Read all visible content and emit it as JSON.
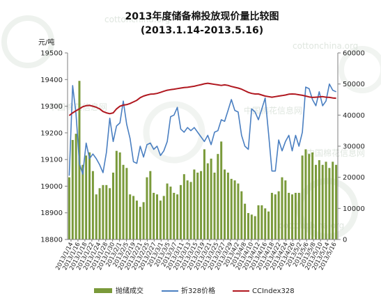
{
  "chart_data": {
    "type": "bar+line",
    "title": "2013年度储备棉投放现价量比较图",
    "subtitle": "(2013.1.14-2013.5.16)",
    "left_unit": "元/吨",
    "left_axis": {
      "min": 18800,
      "max": 19500,
      "ticks": [
        18800,
        18900,
        19000,
        19100,
        19200,
        19300,
        19400,
        19500
      ]
    },
    "right_axis": {
      "min": 0,
      "max": 60000,
      "ticks": [
        0,
        10000,
        20000,
        30000,
        40000,
        50000,
        60000
      ]
    },
    "x_tick_labels": [
      "2013/1/14",
      "2013/1/16",
      "2013/1/18",
      "2013/1/22",
      "2013/1/24",
      "2013/1/28",
      "2013/1/30",
      "2013/2/1",
      "2013/2/5",
      "2013/2/19",
      "2013/2/21",
      "2013/2/25",
      "2013/2/27",
      "2013/3/1",
      "2013/3/5",
      "2013/3/7",
      "2013/3/11",
      "2013/3/13",
      "2013/3/15",
      "2013/3/19",
      "2013/3/21",
      "2013/3/25",
      "2013/3/27",
      "2013/3/29",
      "2013/4/2",
      "2013/4/8",
      "2013/4/10",
      "2013/4/12",
      "2013/4/16",
      "2013/4/18",
      "2013/4/22",
      "2013/4/24",
      "2013/4/26",
      "2013/5/2",
      "2013/5/6",
      "2013/5/8",
      "2013/5/10",
      "2013/5/14",
      "2013/5/16"
    ],
    "series": [
      {
        "name": "抛储成交",
        "type": "bar",
        "axis": "right",
        "color": "#7a9a3a",
        "values": [
          20000,
          32000,
          34000,
          51000,
          24000,
          27000,
          28000,
          22000,
          14500,
          16500,
          17500,
          17500,
          16500,
          21500,
          28500,
          28000,
          24000,
          23000,
          14500,
          14000,
          12500,
          10500,
          12000,
          20000,
          22000,
          15000,
          14500,
          12500,
          14000,
          18000,
          17000,
          15000,
          14500,
          17500,
          21000,
          19000,
          18500,
          22500,
          21500,
          22000,
          29000,
          24500,
          26000,
          21500,
          27500,
          31500,
          22500,
          21500,
          19500,
          19000,
          18000,
          15500,
          11500,
          8500,
          8000,
          7500,
          11000,
          11000,
          10000,
          9000,
          15000,
          14500,
          15500,
          20000,
          19000,
          15000,
          14500,
          15000,
          15000,
          27000,
          29000,
          27500,
          28000,
          24000,
          25500,
          24000,
          25000,
          23000,
          25000,
          24000
        ],
        "values_note": "approximate reading per trading day"
      },
      {
        "name": "折328价格",
        "type": "line",
        "axis": "right",
        "color": "#4a7fc1",
        "values": [
          20500,
          49500,
          40500,
          24500,
          21000,
          31000,
          26000,
          27500,
          26000,
          24000,
          21500,
          28000,
          39000,
          31500,
          36500,
          37500,
          44500,
          37000,
          32500,
          25000,
          24500,
          30000,
          26500,
          30500,
          31000,
          29000,
          30000,
          27000,
          28500,
          31500,
          39500,
          40000,
          42500,
          35500,
          34500,
          36000,
          35000,
          36000,
          34500,
          33000,
          31500,
          33500,
          30500,
          34500,
          35000,
          38500,
          38000,
          41500,
          45000,
          41500,
          41000,
          33500,
          30000,
          29000,
          42000,
          41000,
          38500,
          42000,
          45500,
          34000,
          22000,
          22000,
          32000,
          28500,
          31500,
          33500,
          28500,
          33500,
          30000,
          34500,
          49000,
          48500,
          45000,
          43000,
          47500,
          43000,
          44500,
          50000,
          48000,
          47500
        ],
        "values_note": "approximate, rendered on right-axis scale as in the original"
      },
      {
        "name": "CCIndex328",
        "type": "line",
        "axis": "left",
        "color": "#b0171f",
        "values": [
          19265,
          19275,
          19283,
          19290,
          19298,
          19302,
          19303,
          19300,
          19296,
          19290,
          19280,
          19275,
          19272,
          19275,
          19290,
          19300,
          19304,
          19306,
          19310,
          19316,
          19322,
          19332,
          19338,
          19342,
          19345,
          19346,
          19348,
          19352,
          19356,
          19360,
          19362,
          19364,
          19366,
          19368,
          19370,
          19371,
          19373,
          19375,
          19378,
          19381,
          19384,
          19386,
          19384,
          19382,
          19380,
          19378,
          19380,
          19378,
          19374,
          19371,
          19368,
          19364,
          19358,
          19352,
          19348,
          19346,
          19346,
          19342,
          19338,
          19336,
          19334,
          19336,
          19338,
          19340,
          19342,
          19345,
          19346,
          19345,
          19343,
          19341,
          19338,
          19335,
          19333,
          19334,
          19335,
          19336,
          19334,
          19333,
          19331,
          19330
        ],
        "values_note": "approximate"
      }
    ],
    "legend": {
      "position": "bottom",
      "items": [
        "抛储成交",
        "折328价格",
        "CCIndex328"
      ]
    },
    "grid": false
  },
  "watermarks": [
    "cottonchina.org",
    "cottonchina.org",
    "cottonchina.org",
    "中国棉花信息网",
    "中国棉花信息网",
    "中国棉花信息网"
  ],
  "colors": {
    "bar": "#7a9a3a",
    "price_line": "#4a7fc1",
    "index_line": "#b0171f",
    "axis": "#7f7f7f"
  }
}
